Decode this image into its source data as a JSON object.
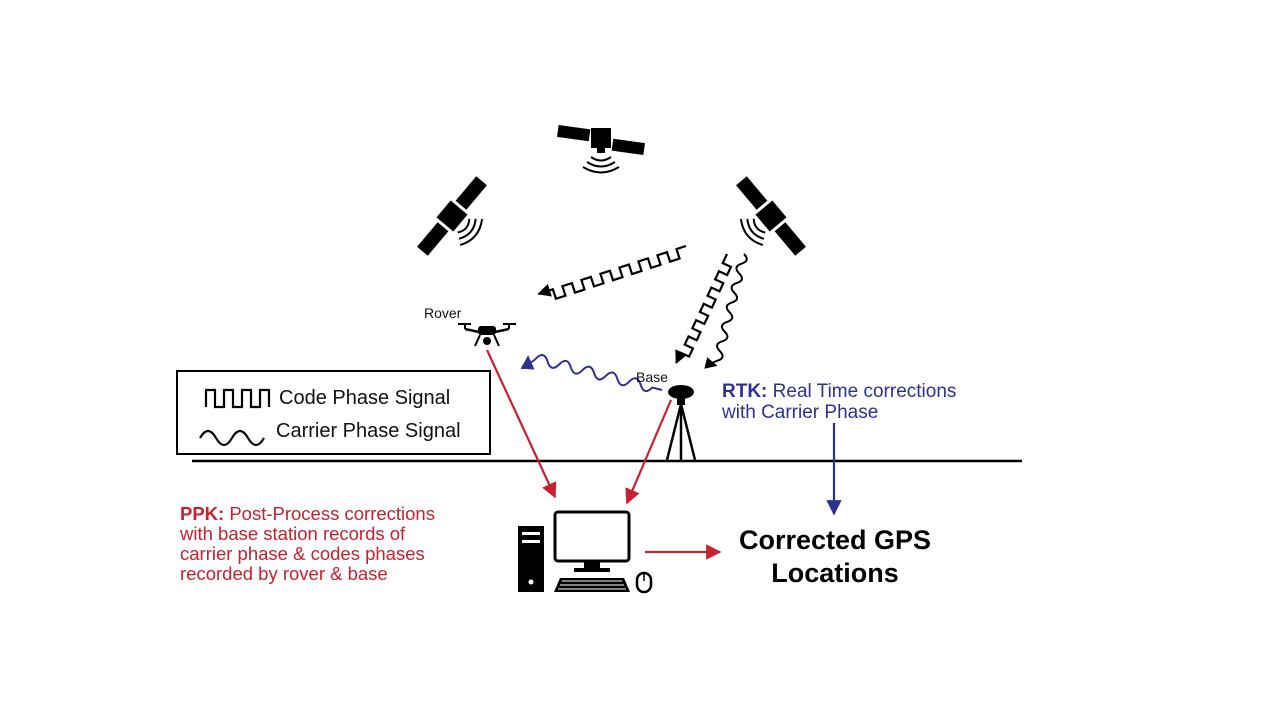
{
  "labels": {
    "rover": "Rover",
    "base": "Base"
  },
  "legend": {
    "code": "Code Phase Signal",
    "carrier": "Carrier Phase Signal"
  },
  "rtk": {
    "head": "RTK:",
    "line1": "Real Time corrections",
    "line2": "with Carrier Phase"
  },
  "ppk": {
    "head": "PPK:",
    "line1": "Post-Process corrections",
    "line2": "with base station records of",
    "line3": "carrier phase & codes phases",
    "line4": "recorded by rover & base"
  },
  "result": {
    "line1": "Corrected GPS",
    "line2": "Locations"
  },
  "colors": {
    "rtk": "#2e3192",
    "ppk": "#c8202f",
    "ink": "#000000"
  },
  "icons": [
    "satellite-icon",
    "drone-icon",
    "tripod-icon",
    "computer-icon",
    "signal-icon"
  ]
}
